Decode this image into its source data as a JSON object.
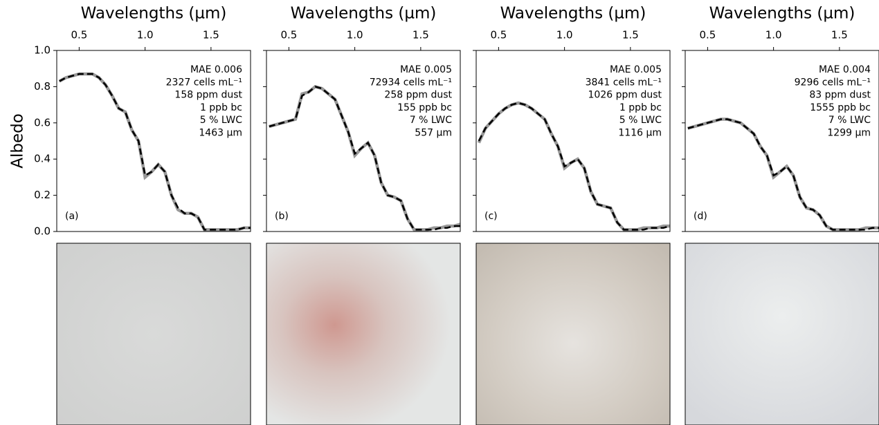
{
  "chart_data": [
    {
      "type": "line",
      "xlabel": "Wavelengths (µm)",
      "ylabel": "Albedo",
      "show_ytick_labels": true,
      "x": [
        0.35,
        0.4,
        0.45,
        0.5,
        0.55,
        0.6,
        0.65,
        0.7,
        0.75,
        0.8,
        0.85,
        0.9,
        0.95,
        1.0,
        1.05,
        1.1,
        1.15,
        1.2,
        1.25,
        1.3,
        1.35,
        1.4,
        1.45,
        1.5,
        1.55,
        1.6,
        1.65,
        1.7,
        1.75,
        1.8
      ],
      "xlim": [
        0.33,
        1.8
      ],
      "xticks": [
        0.5,
        {
          "value": 1,
          "label": "1.0"
        },
        1.5
      ],
      "ylim": [
        0,
        1
      ],
      "yticks": [
        {
          "value": 0,
          "label": "0.0"
        },
        0.2,
        0.4,
        0.6,
        0.8,
        {
          "value": 1,
          "label": "1.0"
        }
      ],
      "series": [
        {
          "color": "#999999",
          "linestyle": "solid",
          "values": [
            0.83,
            0.85,
            0.86,
            0.87,
            0.87,
            0.87,
            0.85,
            0.81,
            0.75,
            0.68,
            0.66,
            0.56,
            0.5,
            0.3,
            0.33,
            0.37,
            0.33,
            0.2,
            0.12,
            0.1,
            0.1,
            0.08,
            0.01,
            0.01,
            0.01,
            0.01,
            0.01,
            0.01,
            0.02,
            0.02
          ]
        },
        {
          "color": "#000000",
          "linestyle": "dashed",
          "values": [
            0.83,
            0.85,
            0.86,
            0.87,
            0.87,
            0.87,
            0.85,
            0.81,
            0.75,
            0.68,
            0.66,
            0.56,
            0.5,
            0.31,
            0.33,
            0.37,
            0.33,
            0.2,
            0.13,
            0.1,
            0.1,
            0.08,
            0.01,
            0.01,
            0.01,
            0.01,
            0.01,
            0.01,
            0.02,
            0.02
          ]
        }
      ],
      "annotations": [
        "MAE 0.006",
        "2327 cells mL⁻¹",
        "158 ppm dust",
        "1 ppb bc",
        "5 % LWC",
        "1463 µm"
      ],
      "panel_label": "(a)"
    },
    {
      "type": "line",
      "xlabel": "Wavelengths (µm)",
      "show_ytick_labels": false,
      "x": [
        0.35,
        0.4,
        0.45,
        0.5,
        0.55,
        0.6,
        0.65,
        0.7,
        0.75,
        0.8,
        0.85,
        0.9,
        0.95,
        1.0,
        1.05,
        1.1,
        1.15,
        1.2,
        1.25,
        1.3,
        1.35,
        1.4,
        1.45,
        1.5,
        1.55,
        1.6,
        1.65,
        1.7,
        1.75,
        1.8
      ],
      "xlim": [
        0.33,
        1.8
      ],
      "xticks": [
        0.5,
        {
          "value": 1,
          "label": "1.0"
        },
        1.5
      ],
      "ylim": [
        0,
        1
      ],
      "yticks": [
        0,
        0.2,
        0.4,
        0.6,
        0.8,
        1
      ],
      "series": [
        {
          "color": "#999999",
          "linestyle": "solid",
          "values": [
            0.58,
            0.59,
            0.6,
            0.61,
            0.62,
            0.76,
            0.77,
            0.8,
            0.79,
            0.76,
            0.73,
            0.64,
            0.55,
            0.42,
            0.46,
            0.49,
            0.42,
            0.27,
            0.2,
            0.19,
            0.17,
            0.07,
            0.01,
            0.01,
            0.01,
            0.02,
            0.02,
            0.03,
            0.03,
            0.04
          ]
        },
        {
          "color": "#000000",
          "linestyle": "dashed",
          "values": [
            0.58,
            0.59,
            0.6,
            0.61,
            0.62,
            0.75,
            0.77,
            0.8,
            0.79,
            0.76,
            0.73,
            0.64,
            0.55,
            0.43,
            0.46,
            0.49,
            0.42,
            0.27,
            0.2,
            0.19,
            0.17,
            0.07,
            0.01,
            0.01,
            0.01,
            0.01,
            0.02,
            0.02,
            0.03,
            0.03
          ]
        }
      ],
      "annotations": [
        "MAE 0.005",
        "72934 cells mL⁻¹",
        "258 ppm dust",
        "155 ppb bc",
        "7 % LWC",
        "557 µm"
      ],
      "panel_label": "(b)"
    },
    {
      "type": "line",
      "xlabel": "Wavelengths (µm)",
      "show_ytick_labels": false,
      "x": [
        0.35,
        0.4,
        0.45,
        0.5,
        0.55,
        0.6,
        0.65,
        0.7,
        0.75,
        0.8,
        0.85,
        0.9,
        0.95,
        1.0,
        1.05,
        1.1,
        1.15,
        1.2,
        1.25,
        1.3,
        1.35,
        1.4,
        1.45,
        1.5,
        1.55,
        1.6,
        1.65,
        1.7,
        1.75,
        1.8
      ],
      "xlim": [
        0.33,
        1.8
      ],
      "xticks": [
        0.5,
        {
          "value": 1,
          "label": "1.0"
        },
        1.5
      ],
      "ylim": [
        0,
        1
      ],
      "yticks": [
        0,
        0.2,
        0.4,
        0.6,
        0.8,
        1
      ],
      "series": [
        {
          "color": "#999999",
          "linestyle": "solid",
          "values": [
            0.49,
            0.57,
            0.61,
            0.65,
            0.68,
            0.7,
            0.71,
            0.7,
            0.68,
            0.65,
            0.62,
            0.54,
            0.47,
            0.35,
            0.38,
            0.4,
            0.35,
            0.22,
            0.15,
            0.14,
            0.13,
            0.05,
            0.01,
            0.01,
            0.01,
            0.02,
            0.02,
            0.02,
            0.03,
            0.03
          ]
        },
        {
          "color": "#000000",
          "linestyle": "dashed",
          "values": [
            0.5,
            0.57,
            0.61,
            0.65,
            0.68,
            0.7,
            0.71,
            0.7,
            0.68,
            0.65,
            0.62,
            0.54,
            0.47,
            0.36,
            0.38,
            0.4,
            0.35,
            0.22,
            0.15,
            0.14,
            0.13,
            0.05,
            0.01,
            0.01,
            0.01,
            0.01,
            0.02,
            0.02,
            0.02,
            0.03
          ]
        }
      ],
      "annotations": [
        "MAE 0.005",
        "3841 cells mL⁻¹",
        "1026 ppm dust",
        "1 ppb bc",
        "5 % LWC",
        "1116 µm"
      ],
      "panel_label": "(c)"
    },
    {
      "type": "line",
      "xlabel": "Wavelengths (µm)",
      "show_ytick_labels": false,
      "x": [
        0.35,
        0.4,
        0.45,
        0.5,
        0.55,
        0.6,
        0.65,
        0.7,
        0.75,
        0.8,
        0.85,
        0.9,
        0.95,
        1.0,
        1.05,
        1.1,
        1.15,
        1.2,
        1.25,
        1.3,
        1.35,
        1.4,
        1.45,
        1.5,
        1.55,
        1.6,
        1.65,
        1.7,
        1.75,
        1.8
      ],
      "xlim": [
        0.33,
        1.8
      ],
      "xticks": [
        0.5,
        {
          "value": 1,
          "label": "1.0"
        },
        1.5
      ],
      "ylim": [
        0,
        1
      ],
      "yticks": [
        0,
        0.2,
        0.4,
        0.6,
        0.8,
        1
      ],
      "series": [
        {
          "color": "#999999",
          "linestyle": "solid",
          "values": [
            0.57,
            0.58,
            0.59,
            0.6,
            0.61,
            0.62,
            0.62,
            0.61,
            0.6,
            0.57,
            0.54,
            0.47,
            0.42,
            0.3,
            0.33,
            0.36,
            0.31,
            0.19,
            0.13,
            0.12,
            0.09,
            0.03,
            0.01,
            0.01,
            0.01,
            0.01,
            0.01,
            0.02,
            0.02,
            0.02
          ]
        },
        {
          "color": "#000000",
          "linestyle": "dashed",
          "values": [
            0.57,
            0.58,
            0.59,
            0.6,
            0.61,
            0.62,
            0.62,
            0.61,
            0.6,
            0.57,
            0.54,
            0.47,
            0.42,
            0.31,
            0.33,
            0.36,
            0.31,
            0.19,
            0.13,
            0.12,
            0.09,
            0.03,
            0.01,
            0.01,
            0.01,
            0.01,
            0.01,
            0.01,
            0.02,
            0.02
          ]
        }
      ],
      "annotations": [
        "MAE 0.004",
        "9296 cells mL⁻¹",
        "83 ppm dust",
        "1555 ppb bc",
        "7 % LWC",
        "1299 µm"
      ],
      "panel_label": "(d)"
    }
  ]
}
